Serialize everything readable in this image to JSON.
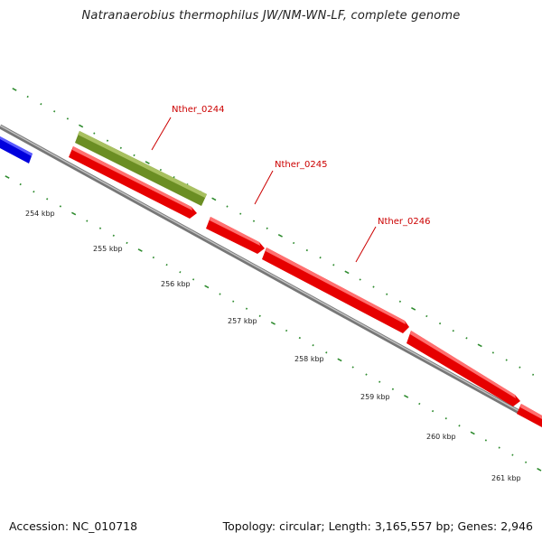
{
  "title": "Natranaerobius thermophilus JW/NM-WN-LF, complete genome",
  "accession_label": "Accession: NC_010718",
  "summary_label": "Topology: circular; Length: 3,165,557 bp; Genes: 2,946",
  "colors": {
    "backbone": "#8a8a8a",
    "forward_gene": "#ee0000",
    "reverse_gene": "#0000ee",
    "other_feature": "#6b8e23",
    "tick": "#2e8b2e",
    "label": "#cc0000"
  },
  "gene_labels": [
    {
      "label": "Nther_0244"
    },
    {
      "label": "Nther_0245"
    },
    {
      "label": "Nther_0246"
    }
  ],
  "ruler_ticks": [
    {
      "label": "254 kbp"
    },
    {
      "label": "255 kbp"
    },
    {
      "label": "256 kbp"
    },
    {
      "label": "257 kbp"
    },
    {
      "label": "258 kbp"
    },
    {
      "label": "259 kbp"
    },
    {
      "label": "260 kbp"
    },
    {
      "label": "261 kbp"
    }
  ]
}
